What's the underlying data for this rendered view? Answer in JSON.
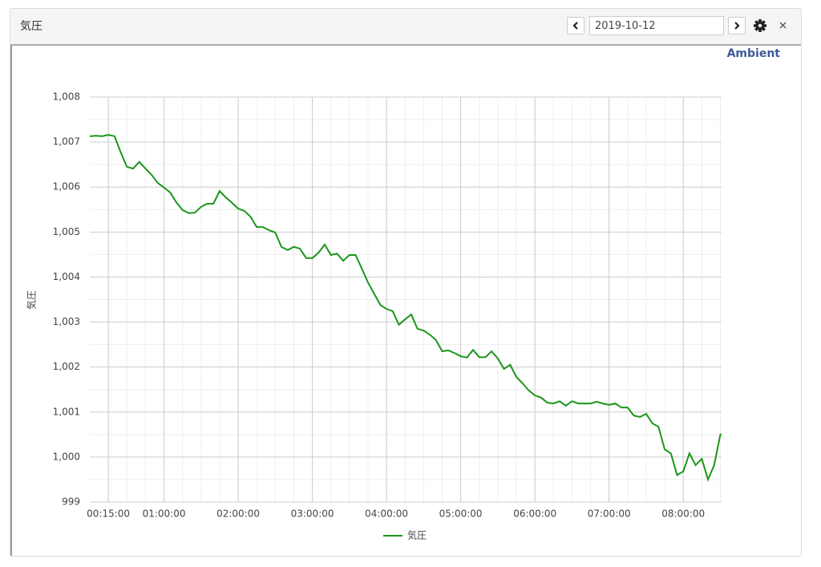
{
  "header": {
    "title": "気圧",
    "date": "2019-10-12"
  },
  "chart_data": {
    "type": "line",
    "subtitle": "Ambient",
    "y_label": "気圧",
    "x": [
      "00:00:00",
      "00:05:00",
      "00:10:00",
      "00:15:00",
      "00:20:00",
      "00:25:00",
      "00:30:00",
      "00:35:00",
      "00:40:00",
      "00:45:00",
      "00:50:00",
      "00:55:00",
      "01:00:00",
      "01:05:00",
      "01:10:00",
      "01:15:00",
      "01:20:00",
      "01:25:00",
      "01:30:00",
      "01:35:00",
      "01:40:00",
      "01:45:00",
      "01:50:00",
      "01:55:00",
      "02:00:00",
      "02:05:00",
      "02:10:00",
      "02:15:00",
      "02:20:00",
      "02:25:00",
      "02:30:00",
      "02:35:00",
      "02:40:00",
      "02:45:00",
      "02:50:00",
      "02:55:00",
      "03:00:00",
      "03:05:00",
      "03:10:00",
      "03:15:00",
      "03:20:00",
      "03:25:00",
      "03:30:00",
      "03:35:00",
      "03:40:00",
      "03:45:00",
      "03:50:00",
      "03:55:00",
      "04:00:00",
      "04:05:00",
      "04:10:00",
      "04:15:00",
      "04:20:00",
      "04:25:00",
      "04:30:00",
      "04:35:00",
      "04:40:00",
      "04:45:00",
      "04:50:00",
      "04:55:00",
      "05:00:00",
      "05:05:00",
      "05:10:00",
      "05:15:00",
      "05:20:00",
      "05:25:00",
      "05:30:00",
      "05:35:00",
      "05:40:00",
      "05:45:00",
      "05:50:00",
      "05:55:00",
      "06:00:00",
      "06:05:00",
      "06:10:00",
      "06:15:00",
      "06:20:00",
      "06:25:00",
      "06:30:00",
      "06:35:00",
      "06:40:00",
      "06:45:00",
      "06:50:00",
      "06:55:00",
      "07:00:00",
      "07:05:00",
      "07:10:00",
      "07:15:00",
      "07:20:00",
      "07:25:00",
      "07:30:00",
      "07:35:00",
      "07:40:00",
      "07:45:00",
      "07:50:00",
      "07:55:00",
      "08:00:00",
      "08:05:00",
      "08:10:00",
      "08:15:00",
      "08:20:00",
      "08:25:00",
      "08:30:00",
      "08:31:00"
    ],
    "series": [
      {
        "name": "気圧",
        "color": "#1a961a",
        "values": [
          1007.13,
          1007.14,
          1007.13,
          1007.16,
          1007.13,
          1006.77,
          1006.45,
          1006.41,
          1006.56,
          1006.41,
          1006.27,
          1006.09,
          1005.99,
          1005.88,
          1005.66,
          1005.49,
          1005.42,
          1005.43,
          1005.56,
          1005.63,
          1005.63,
          1005.91,
          1005.77,
          1005.65,
          1005.52,
          1005.47,
          1005.34,
          1005.11,
          1005.11,
          1005.04,
          1004.99,
          1004.67,
          1004.6,
          1004.67,
          1004.63,
          1004.42,
          1004.42,
          1004.54,
          1004.72,
          1004.49,
          1004.52,
          1004.36,
          1004.49,
          1004.49,
          1004.19,
          1003.88,
          1003.63,
          1003.38,
          1003.29,
          1003.24,
          1002.94,
          1003.06,
          1003.17,
          1002.85,
          1002.81,
          1002.72,
          1002.6,
          1002.35,
          1002.37,
          1002.31,
          1002.24,
          1002.21,
          1002.38,
          1002.22,
          1002.22,
          1002.35,
          1002.19,
          1001.96,
          1002.05,
          1001.78,
          1001.64,
          1001.48,
          1001.37,
          1001.32,
          1001.21,
          1001.19,
          1001.24,
          1001.14,
          1001.24,
          1001.19,
          1001.19,
          1001.19,
          1001.23,
          1001.19,
          1001.16,
          1001.19,
          1001.1,
          1001.1,
          1000.92,
          1000.89,
          1000.96,
          1000.75,
          1000.67,
          1000.17,
          1000.08,
          999.6,
          999.68,
          1000.08,
          999.82,
          999.96,
          999.5,
          999.82,
          1000.5,
          1000.51
        ]
      }
    ],
    "xlim": [
      "00:00:00",
      "08:31:00"
    ],
    "xticks": [
      "00:15:00",
      "01:00:00",
      "02:00:00",
      "03:00:00",
      "04:00:00",
      "05:00:00",
      "06:00:00",
      "07:00:00",
      "08:00:00"
    ],
    "ylim": [
      999,
      1008
    ],
    "yticks": [
      999,
      {
        "value": 1000,
        "label": "1,000"
      },
      {
        "value": 1001,
        "label": "1,001"
      },
      {
        "value": 1002,
        "label": "1,002"
      },
      {
        "value": 1003,
        "label": "1,003"
      },
      {
        "value": 1004,
        "label": "1,004"
      },
      {
        "value": 1005,
        "label": "1,005"
      },
      {
        "value": 1006,
        "label": "1,006"
      },
      {
        "value": 1007,
        "label": "1,007"
      },
      {
        "value": 1008,
        "label": "1,008"
      }
    ],
    "grid": true,
    "minor_grid": true,
    "legend": "bottom"
  }
}
